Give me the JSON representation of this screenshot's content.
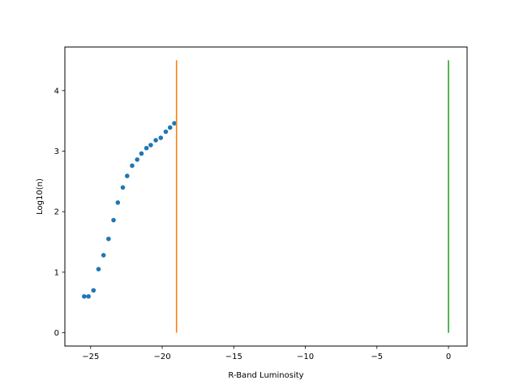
{
  "chart_data": {
    "type": "scatter",
    "title": "",
    "xlabel": "R-Band Luminosity",
    "ylabel": "Log10(n)",
    "xlim": [
      -26.8,
      1.3
    ],
    "ylim": [
      -0.22,
      4.72
    ],
    "grid": false,
    "x_ticks": [
      -25,
      -20,
      -15,
      -10,
      -5,
      0
    ],
    "x_tick_labels": [
      "−25",
      "−20",
      "−15",
      "−10",
      "−5",
      "0"
    ],
    "y_ticks": [
      0,
      1,
      2,
      3,
      4
    ],
    "y_tick_labels": [
      "0",
      "1",
      "2",
      "3",
      "4"
    ],
    "series": [
      {
        "kind": "scatter",
        "color": "#1f77b4",
        "x": [
          -25.45,
          -25.15,
          -24.8,
          -24.45,
          -24.1,
          -23.75,
          -23.4,
          -23.1,
          -22.75,
          -22.45,
          -22.1,
          -21.75,
          -21.45,
          -21.1,
          -20.8,
          -20.45,
          -20.1,
          -19.75,
          -19.45,
          -19.15
        ],
        "y": [
          0.6,
          0.6,
          0.7,
          1.05,
          1.28,
          1.55,
          1.86,
          2.15,
          2.4,
          2.59,
          2.76,
          2.86,
          2.96,
          3.05,
          3.1,
          3.18,
          3.22,
          3.32,
          3.39,
          3.46
        ]
      },
      {
        "kind": "vline",
        "color": "#ff7f0e",
        "x": -19.0,
        "y_range": [
          0,
          4.5
        ]
      },
      {
        "kind": "vline",
        "color": "#2ca02c",
        "x": 0.0,
        "y_range": [
          0,
          4.5
        ]
      }
    ]
  }
}
